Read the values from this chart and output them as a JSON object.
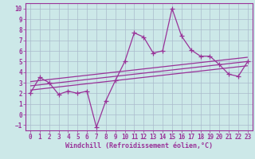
{
  "xlabel": "Windchill (Refroidissement éolien,°C)",
  "xlim": [
    -0.5,
    23.5
  ],
  "ylim": [
    -1.5,
    10.5
  ],
  "xticks": [
    0,
    1,
    2,
    3,
    4,
    5,
    6,
    7,
    8,
    9,
    10,
    11,
    12,
    13,
    14,
    15,
    16,
    17,
    18,
    19,
    20,
    21,
    22,
    23
  ],
  "yticks": [
    -1,
    0,
    1,
    2,
    3,
    4,
    5,
    6,
    7,
    8,
    9,
    10
  ],
  "bg_color": "#cce8e8",
  "line_color": "#993399",
  "grid_color": "#aabbcc",
  "main_line": {
    "x": [
      0,
      1,
      2,
      3,
      4,
      5,
      6,
      7,
      8,
      9,
      10,
      11,
      12,
      13,
      14,
      15,
      16,
      17,
      18,
      19,
      20,
      21,
      22,
      23
    ],
    "y": [
      2.0,
      3.5,
      3.0,
      1.9,
      2.2,
      2.0,
      2.2,
      -1.2,
      1.3,
      3.2,
      5.0,
      7.7,
      7.3,
      5.8,
      6.0,
      10.0,
      7.4,
      6.1,
      5.5,
      5.5,
      4.7,
      3.8,
      3.6,
      5.0
    ]
  },
  "regression_lines": [
    {
      "x": [
        0,
        23
      ],
      "y": [
        2.3,
        4.6
      ]
    },
    {
      "x": [
        0,
        23
      ],
      "y": [
        2.7,
        5.0
      ]
    },
    {
      "x": [
        0,
        23
      ],
      "y": [
        3.1,
        5.4
      ]
    }
  ],
  "tick_fontsize": 5.5,
  "xlabel_fontsize": 6.0
}
